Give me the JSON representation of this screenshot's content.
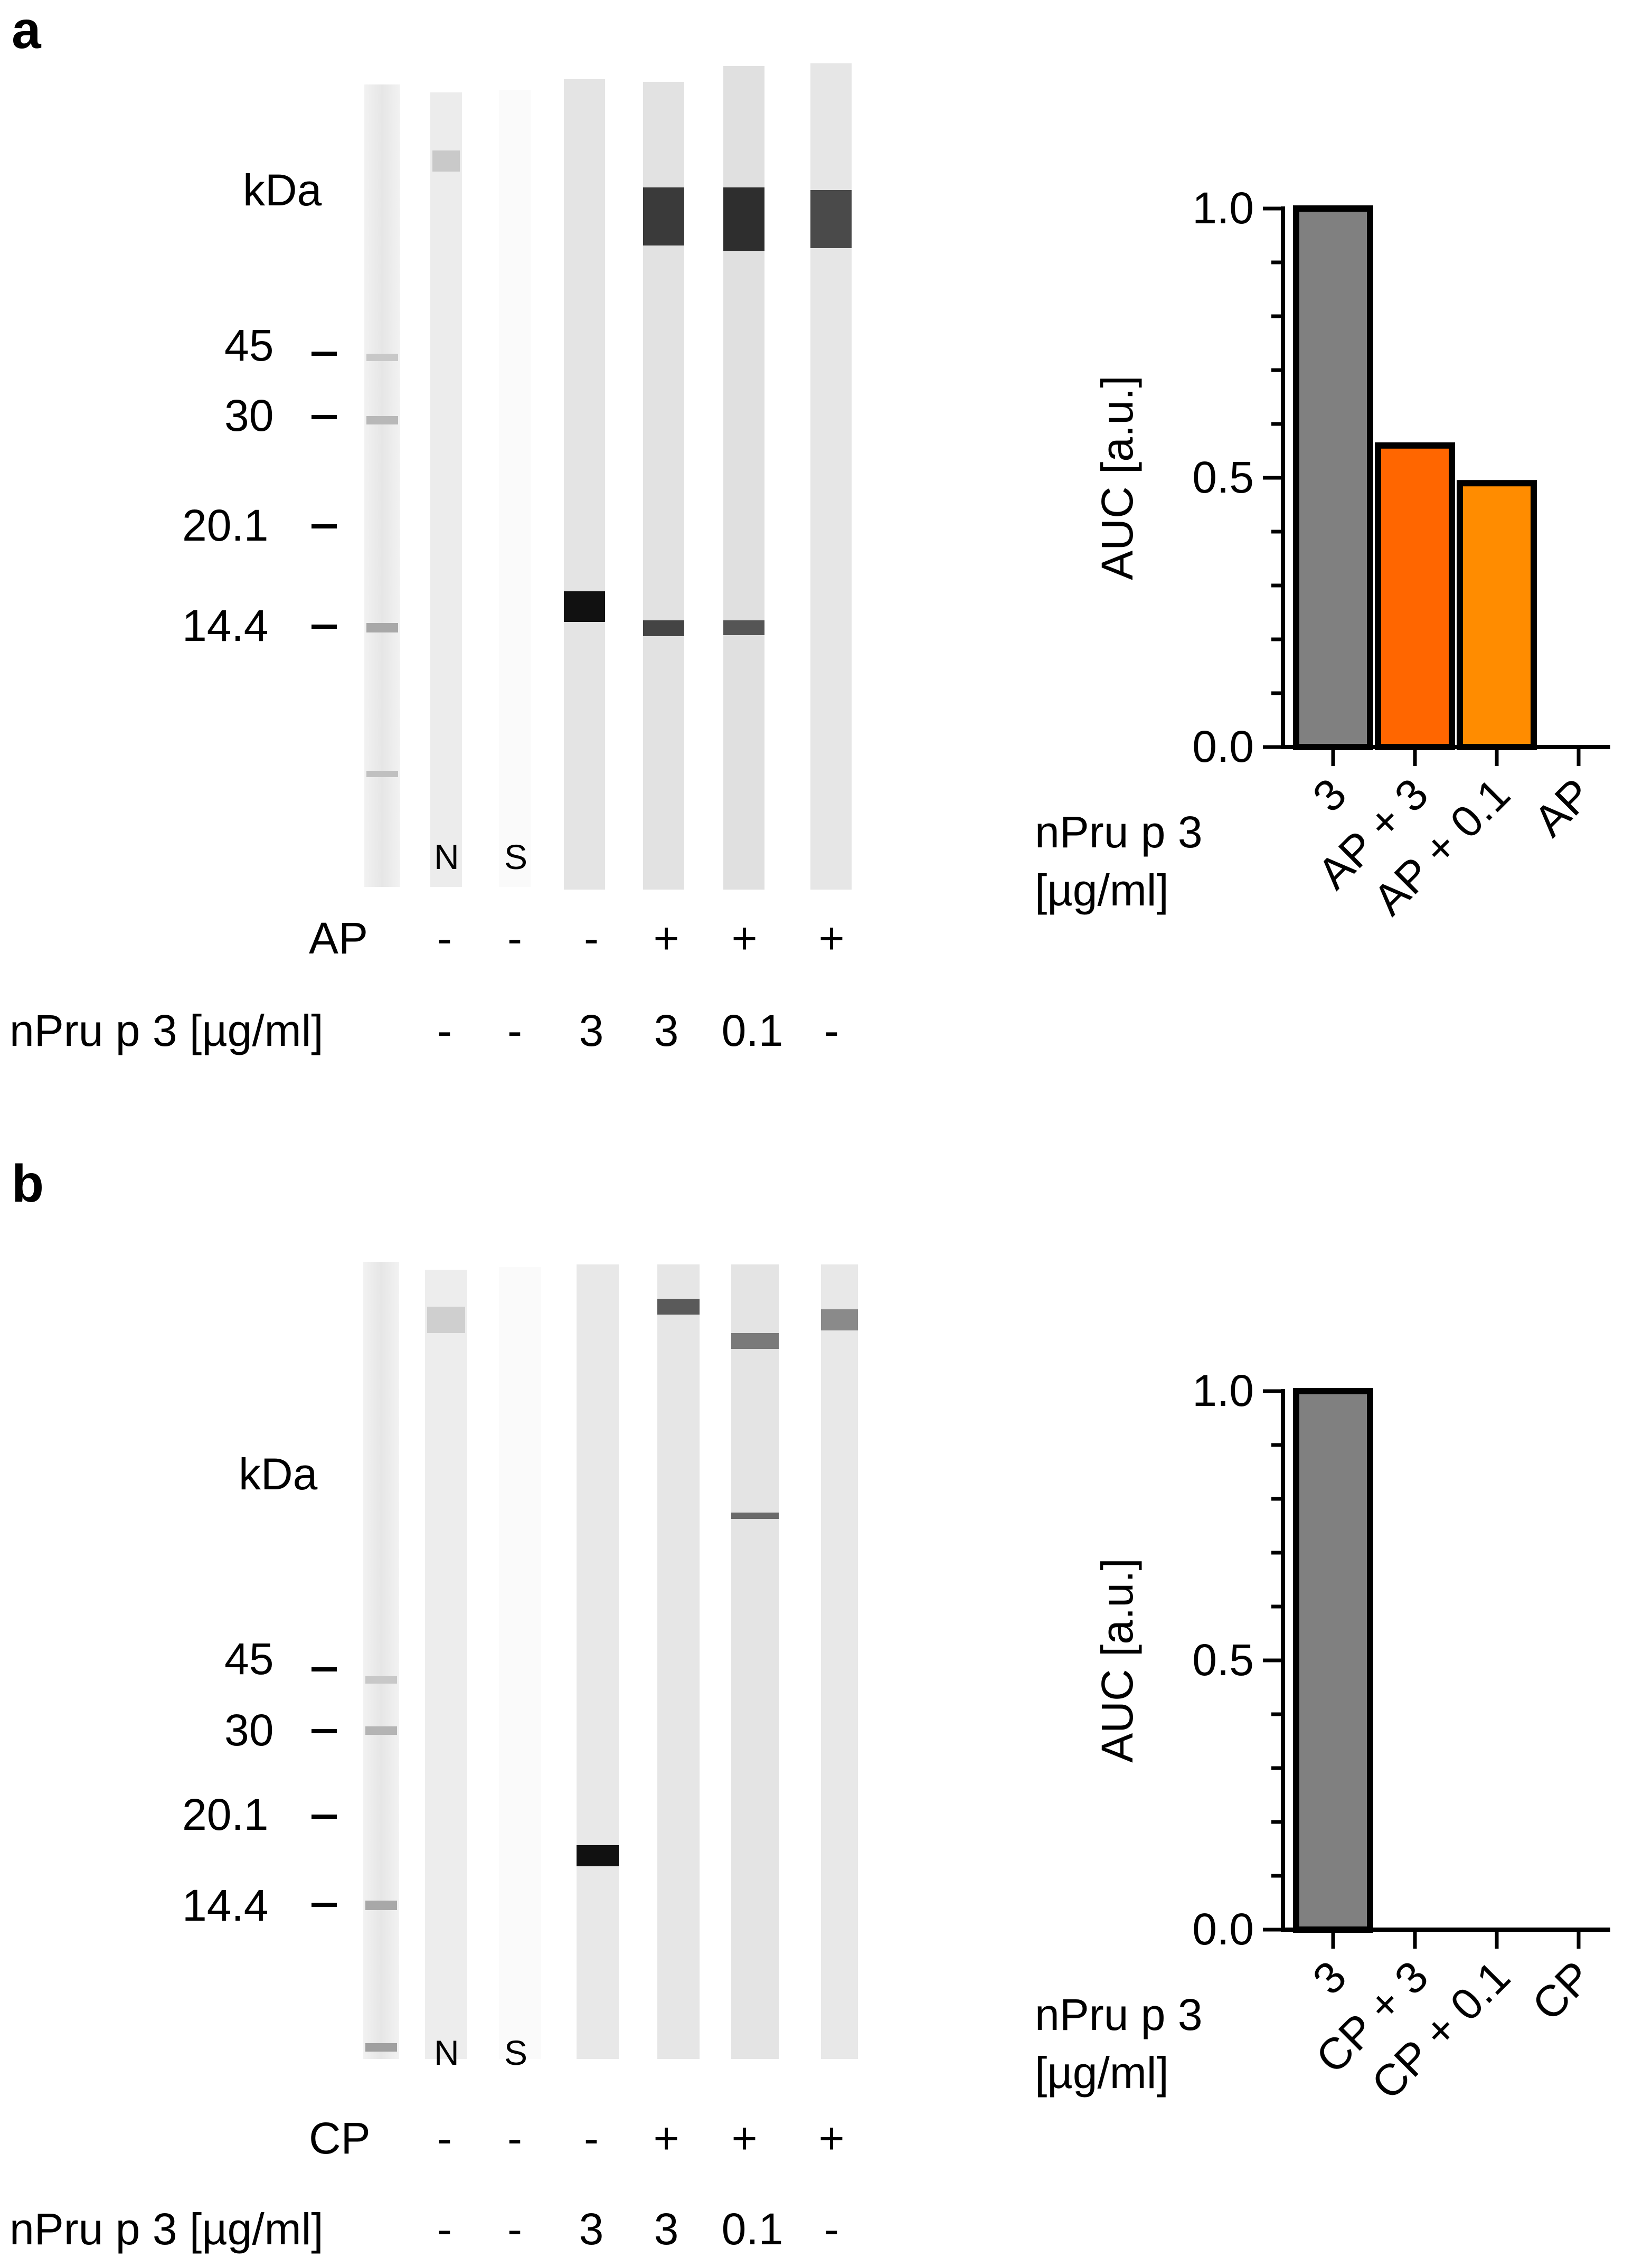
{
  "panels": [
    {
      "label": "a",
      "blot": {
        "unit_label": "kDa",
        "markers": [
          "45",
          "30",
          "20.1",
          "14.4"
        ],
        "lane_letters": [
          "N",
          "S"
        ],
        "row1_label": "AP",
        "row1_values": [
          "-",
          "-",
          "-",
          "+",
          "+",
          "+"
        ],
        "row2_label": "nPru p 3 [µg/ml]",
        "row2_values": [
          "-",
          "-",
          "3",
          "3",
          "0.1",
          "-"
        ]
      },
      "chart_data": {
        "type": "bar",
        "ylabel": "AUC [a.u.]",
        "xlabel": "nPru p 3 [µg/ml]",
        "categories": [
          "3",
          "AP + 3",
          "AP + 0.1",
          "AP"
        ],
        "values": [
          1.0,
          0.56,
          0.49,
          0
        ],
        "colors": [
          "#808080",
          "#ff6600",
          "#ff8c00",
          "#ffffff"
        ],
        "ylim": [
          0,
          1.0
        ],
        "yticks": [
          "0.0",
          "0.5",
          "1.0"
        ]
      }
    },
    {
      "label": "b",
      "blot": {
        "unit_label": "kDa",
        "markers": [
          "45",
          "30",
          "20.1",
          "14.4"
        ],
        "lane_letters": [
          "N",
          "S"
        ],
        "row1_label": "CP",
        "row1_values": [
          "-",
          "-",
          "-",
          "+",
          "+",
          "+"
        ],
        "row2_label": "nPru p 3 [µg/ml]",
        "row2_values": [
          "-",
          "-",
          "3",
          "3",
          "0.1",
          "-"
        ]
      },
      "chart_data": {
        "type": "bar",
        "ylabel": "AUC [a.u.]",
        "xlabel": "nPru p 3 [µg/ml]",
        "categories": [
          "3",
          "CP + 3",
          "CP + 0.1",
          "CP"
        ],
        "values": [
          1.0,
          0,
          0,
          0
        ],
        "colors": [
          "#808080",
          "#808080",
          "#808080",
          "#808080"
        ],
        "ylim": [
          0,
          1.0
        ],
        "yticks": [
          "0.0",
          "0.5",
          "1.0"
        ]
      }
    }
  ]
}
